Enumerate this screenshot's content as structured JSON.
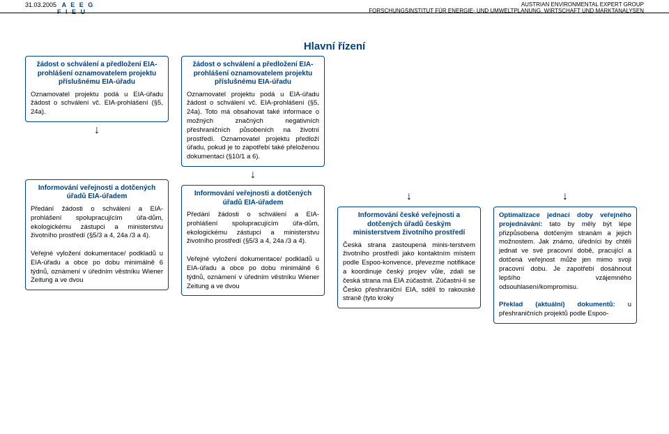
{
  "header": {
    "date": "31.03.2005",
    "brand1": "A E E G",
    "brand2": "F I E U",
    "right1": "AUSTRIAN ENVIRONMENTAL EXPERT GROUP",
    "right2": "FORSCHUNGSINSTITUT FÜR ENERGIE- UND UMWELTPLANUNG, WIRTSCHAFT UND MARKTANALYSEN"
  },
  "mainTitle": "Hlavní řízení",
  "colA": {
    "box1": {
      "title": "žádost o schválení a předložení EIA-prohlášení oznamovatelem projektu příslušnému EIA-úřadu",
      "body": "Oznamovatel projektu podá u EIA-úřadu žádost o schválení vč. EIA-prohlášení (§5, 24a)."
    },
    "box2": {
      "title": "Informování veřejnosti a dotčených úřadů EIA-úřadem",
      "body": "Předání žádosti o schválení a EIA-prohlášení spolupracujícím úřa-dům, ekologickému zástupci a ministerstvu životního prostředí (§5/3 a 4, 24a /3 a 4).\n\nVeřejné vyložení dokumentace/ podkladů u EIA-úřadu a obce po dobu minimálně 6 týdnů, oznámení v úředním věstníku Wiener Zeitung a ve dvou"
    }
  },
  "colB": {
    "box1": {
      "title": "žádost o schválení a předložení EIA-prohlášení oznamovatelem projektu příslušnému EIA-úřadu",
      "body": "Oznamovatel projektu podá u EIA-úřadu žádost o schválení vč. EIA-prohlášení (§5, 24a). Toto má obsahovat také informace o možných značných negativních přeshraničních působeních na životní prostředí. Oznamovatel projektu předloží úřadu, pokud je to zapotřebí také přeloženou dokumentaci (§10/1 a 6)."
    },
    "box2": {
      "title": "Informování veřejnosti a dotčených úřadů EIA-úřadem",
      "body": "Předání žádosti o schválení a EIA-prohlášení spolupracujícím úřa-dům, ekologickému zástupci a ministerstvu životního prostředí (§5/3 a 4, 24a /3 a 4).\n\nVeřejné vyložení dokumentace/ podkladů u EIA-úřadu a obce po dobu minimálně 6 týdnů, oznámení v úředním věstníku Wiener Zeitung a ve dvou"
    }
  },
  "colC": {
    "box1": {
      "title": "Informování české veřejnosti a dotčených úřadů českým ministerstvem životního prostředí",
      "body": "Česká strana zastoupená minis-terstvem životního prostředí jako kontaktním místem podle Espoo-konvence, převezme notifikace a koordinuje český projev vůle, zdali se česká strana má EIA zúčastnit. Zúčastní-li se Česko přeshraniční EIA, sdělí to rakouské straně (tyto kroky"
    }
  },
  "colD": {
    "box1": {
      "body": "<span class=\"boldblue\">Optimalizace jednací doby veřejného projednávání:</span> tato by měly být lépe přizpůsobena dotčeným stranám a jejich možnostem. Jak známo, úředníci by chtěli jednat ve své pracovní době, pracující a dotčená veřejnost může jen mimo svoji pracovní dobu. Je zapotřebí dosáhnout lepšího vzájemného odsouhlasení/kompromisu.\n\n<span class=\"boldblue\">Překlad (aktuální) dokumentů:</span> u přeshraničních projektů podle Espoo-"
    }
  },
  "arrow": "↓"
}
